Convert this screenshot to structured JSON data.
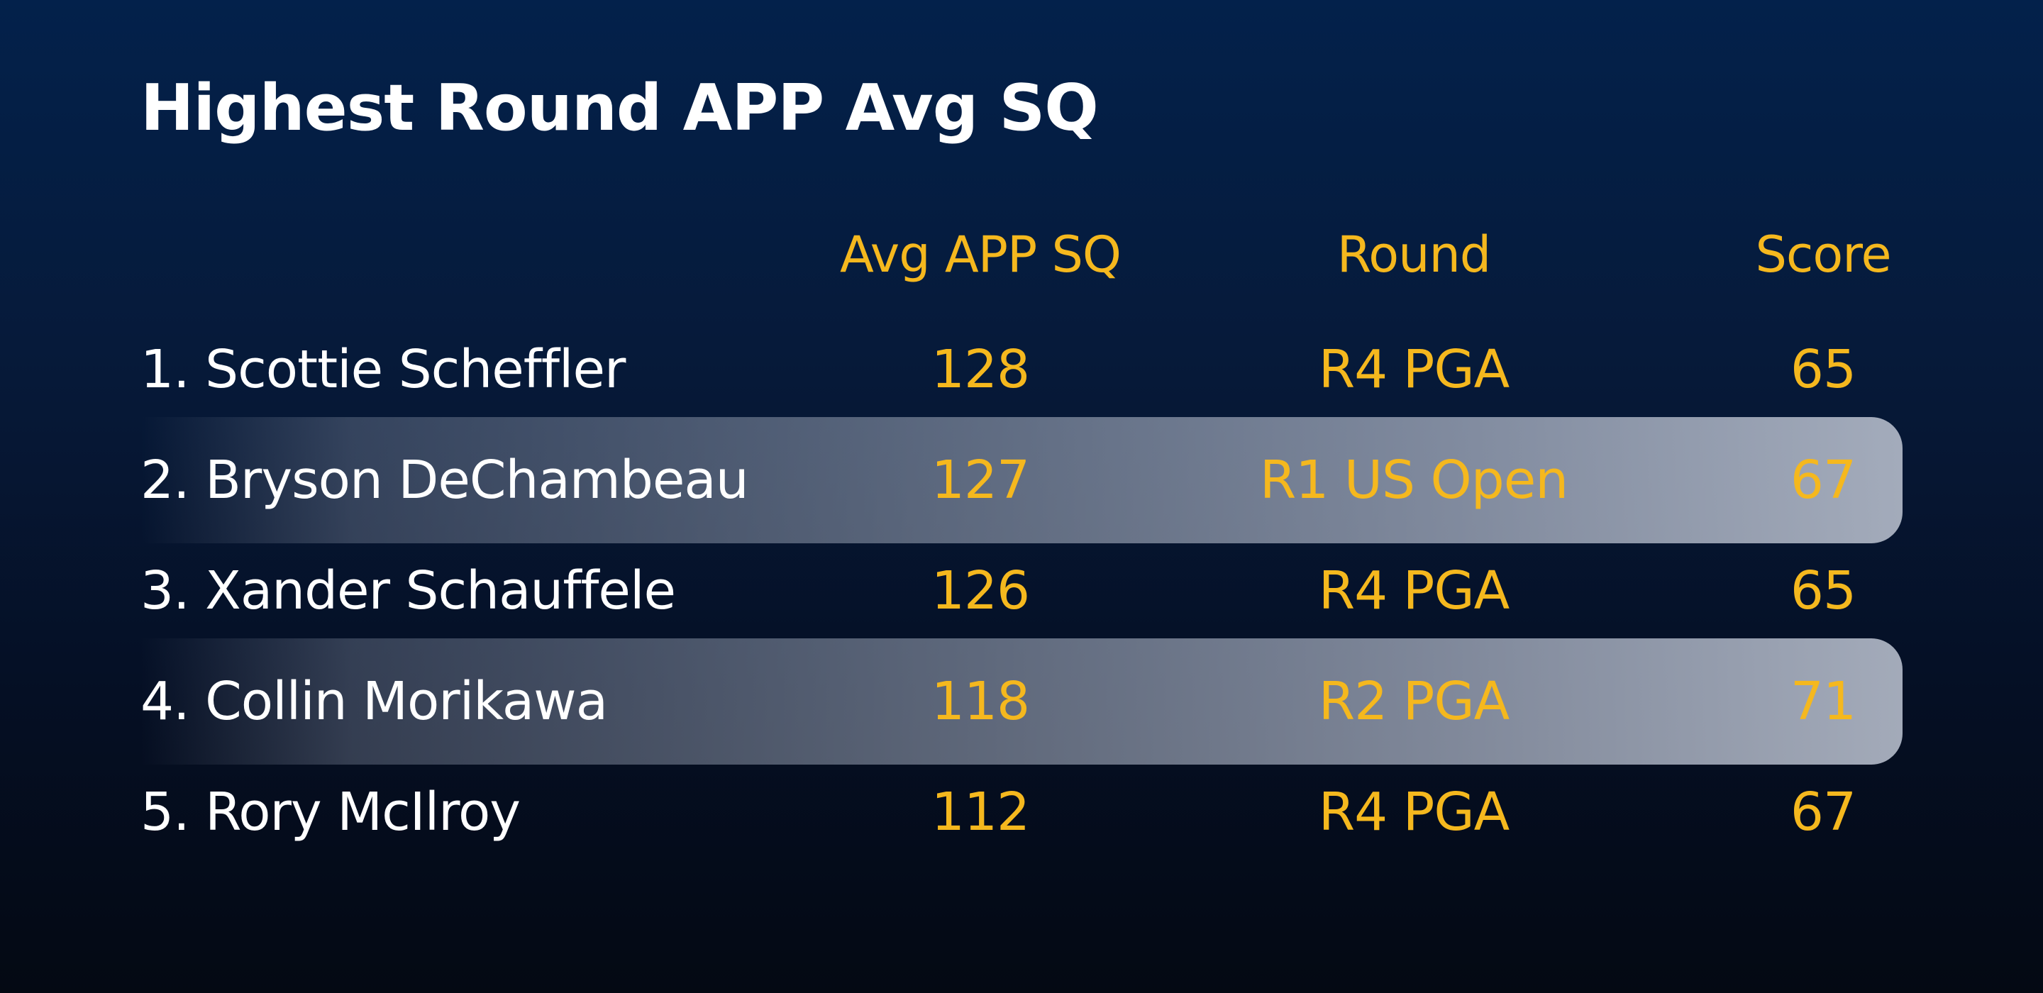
{
  "title": "Highest Round APP Avg SQ",
  "colors": {
    "header": "#f5b81e",
    "value": "#f5b81e",
    "name": "#ffffff",
    "background": "#03214b"
  },
  "chart_data": {
    "type": "table",
    "title": "Highest Round APP Avg SQ",
    "columns": [
      "",
      "Avg APP SQ",
      "Round",
      "Score"
    ],
    "rows": [
      {
        "player": "1. Scottie Scheffler",
        "avg_app_sq": 128,
        "round": "R4 PGA",
        "score": 65,
        "highlighted": false
      },
      {
        "player": "2. Bryson DeChambeau",
        "avg_app_sq": 127,
        "round": "R1 US Open",
        "score": 67,
        "highlighted": true
      },
      {
        "player": "3. Xander Schauffele",
        "avg_app_sq": 126,
        "round": "R4 PGA",
        "score": 65,
        "highlighted": false
      },
      {
        "player": "4. Collin Morikawa",
        "avg_app_sq": 118,
        "round": "R2 PGA",
        "score": 71,
        "highlighted": true
      },
      {
        "player": "5. Rory McIlroy",
        "avg_app_sq": 112,
        "round": "R4 PGA",
        "score": 67,
        "highlighted": false
      }
    ]
  }
}
